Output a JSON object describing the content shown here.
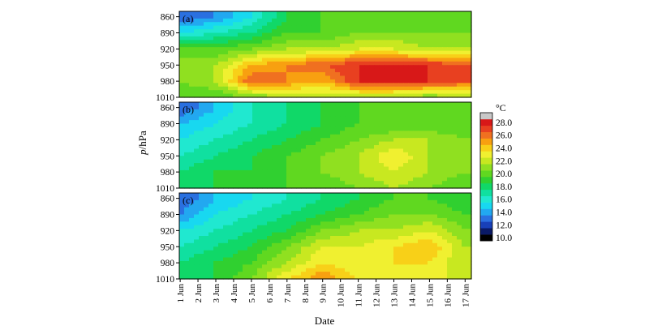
{
  "chart_data": {
    "type": "heatmap",
    "xlabel": "Date",
    "ylabel_italic": "p",
    "ylabel_rest": "/hPa",
    "x_ticks": [
      "1 Jun",
      "2 Jun",
      "3 Jun",
      "4 Jun",
      "5 Jun",
      "6 Jun",
      "7 Jun",
      "8 Jun",
      "9 Jun",
      "10 Jun",
      "11 Jun",
      "12 Jun",
      "13 Jun",
      "14 Jun",
      "15 Jun",
      "16 Jun",
      "17 Jun"
    ],
    "y_ticks": [
      "860",
      "890",
      "920",
      "950",
      "980",
      "1010"
    ],
    "ylim": [
      1010,
      850
    ],
    "xlim": [
      0.95,
      17.35
    ],
    "colorbar": {
      "unit": "°C",
      "labels": [
        "28.0",
        "26.0",
        "24.0",
        "22.0",
        "20.0",
        "18.0",
        "16.0",
        "14.0",
        "12.0",
        "10.0"
      ],
      "levels": [
        10,
        11,
        12,
        13,
        14,
        15,
        16,
        17,
        18,
        19,
        20,
        21,
        22,
        23,
        24,
        25,
        26,
        27,
        28,
        29
      ],
      "colors": [
        "#000000",
        "#0a1a66",
        "#1840b8",
        "#2a70e0",
        "#22a8f0",
        "#18d8f0",
        "#20e8d0",
        "#10e0a0",
        "#10d868",
        "#30d030",
        "#60d820",
        "#90e020",
        "#c8e820",
        "#f0f030",
        "#f8d018",
        "#f8a010",
        "#f07020",
        "#e84020",
        "#d81818",
        "#c8c8c8"
      ]
    },
    "panels": [
      {
        "label": "(a)",
        "x": [
          1,
          3,
          5,
          7,
          9,
          11,
          13,
          15,
          17
        ],
        "y": [
          860,
          890,
          920,
          950,
          980,
          1010
        ],
        "z": [
          [
            13,
            14,
            16,
            19,
            20,
            20,
            20,
            20,
            20
          ],
          [
            16,
            17,
            18,
            20,
            20,
            21,
            21,
            21,
            21
          ],
          [
            20,
            20,
            21,
            22,
            22,
            23,
            23,
            22,
            22
          ],
          [
            22,
            22,
            25,
            26,
            27,
            28,
            28,
            28,
            27
          ],
          [
            21,
            22,
            27,
            26,
            25,
            28,
            28,
            28,
            27
          ],
          [
            20,
            20,
            21,
            22,
            22,
            22,
            22,
            21,
            22
          ]
        ]
      },
      {
        "label": "(b)",
        "x": [
          1,
          3,
          5,
          7,
          9,
          11,
          13,
          15,
          17
        ],
        "y": [
          860,
          890,
          920,
          950,
          980,
          1010
        ],
        "z": [
          [
            13,
            15,
            17,
            18,
            19,
            20,
            20,
            20,
            20
          ],
          [
            15,
            16,
            17,
            18,
            19,
            20,
            20,
            20,
            20
          ],
          [
            16,
            17,
            18,
            19,
            20,
            21,
            22,
            22,
            21
          ],
          [
            17,
            18,
            19,
            20,
            21,
            22,
            24,
            22,
            21
          ],
          [
            18,
            19,
            19,
            20,
            21,
            22,
            23,
            22,
            21
          ],
          [
            18,
            19,
            19,
            20,
            20,
            21,
            22,
            21,
            20
          ]
        ]
      },
      {
        "label": "(c)",
        "x": [
          1,
          3,
          5,
          7,
          9,
          11,
          13,
          15,
          17
        ],
        "y": [
          860,
          890,
          920,
          950,
          980,
          1010
        ],
        "z": [
          [
            13,
            15,
            16,
            17,
            18,
            19,
            20,
            20,
            19
          ],
          [
            14,
            16,
            17,
            18,
            19,
            20,
            21,
            21,
            20
          ],
          [
            16,
            17,
            18,
            19,
            21,
            22,
            22,
            23,
            21
          ],
          [
            17,
            18,
            19,
            21,
            23,
            23,
            24,
            25,
            22
          ],
          [
            18,
            19,
            20,
            22,
            24,
            23,
            24,
            24,
            22
          ],
          [
            18,
            19,
            21,
            24,
            26,
            24,
            23,
            24,
            22
          ]
        ]
      }
    ]
  }
}
